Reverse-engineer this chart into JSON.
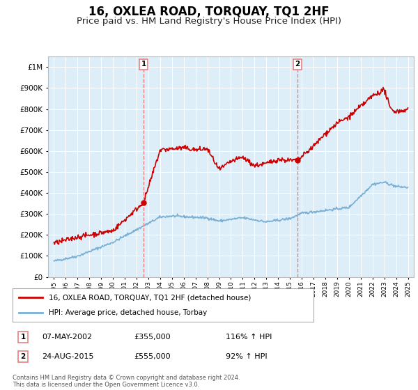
{
  "title": "16, OXLEA ROAD, TORQUAY, TQ1 2HF",
  "subtitle": "Price paid vs. HM Land Registry's House Price Index (HPI)",
  "title_fontsize": 12,
  "subtitle_fontsize": 9.5,
  "background_color": "#ffffff",
  "plot_bg_color": "#ddeef8",
  "grid_color": "#ffffff",
  "red_line_color": "#cc0000",
  "blue_line_color": "#7ab0d4",
  "sale1_date_x": 2002.6,
  "sale1_price": 355000,
  "sale2_date_x": 2015.65,
  "sale2_price": 555000,
  "vline_color": "#e88080",
  "ylim_min": 0,
  "ylim_max": 1000000,
  "yticks": [
    0,
    100000,
    200000,
    300000,
    400000,
    500000,
    600000,
    700000,
    800000,
    900000
  ],
  "ytick_labels": [
    "£0",
    "£100K",
    "£200K",
    "£300K",
    "£400K",
    "£500K",
    "£600K",
    "£700K",
    "£800K",
    "£900K"
  ],
  "extra_ytick": 1000000,
  "extra_ytick_label": "£1M",
  "xlim_min": 1994.5,
  "xlim_max": 2025.5,
  "xtick_years": [
    1995,
    1996,
    1997,
    1998,
    1999,
    2000,
    2001,
    2002,
    2003,
    2004,
    2005,
    2006,
    2007,
    2008,
    2009,
    2010,
    2011,
    2012,
    2013,
    2014,
    2015,
    2016,
    2017,
    2018,
    2019,
    2020,
    2021,
    2022,
    2023,
    2024,
    2025
  ],
  "legend_red_label": "16, OXLEA ROAD, TORQUAY, TQ1 2HF (detached house)",
  "legend_blue_label": "HPI: Average price, detached house, Torbay",
  "footer_text": "Contains HM Land Registry data © Crown copyright and database right 2024.\nThis data is licensed under the Open Government Licence v3.0.",
  "table_rows": [
    {
      "num": "1",
      "date": "07-MAY-2002",
      "price": "£355,000",
      "hpi": "116% ↑ HPI"
    },
    {
      "num": "2",
      "date": "24-AUG-2015",
      "price": "£555,000",
      "hpi": "92% ↑ HPI"
    }
  ]
}
